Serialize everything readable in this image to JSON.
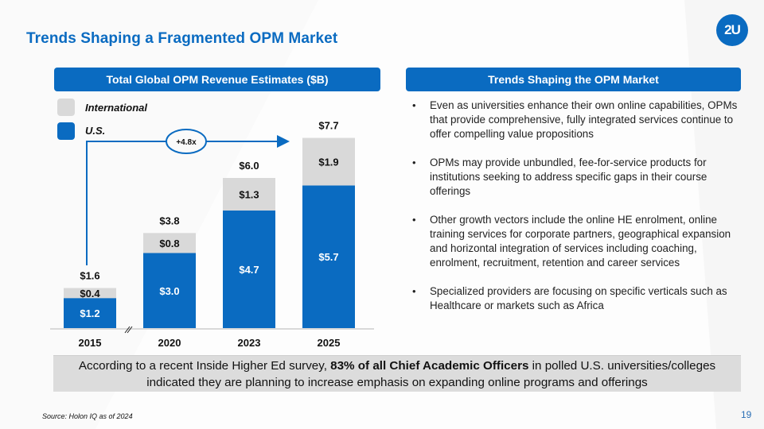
{
  "slide": {
    "title": "Trends Shaping a Fragmented OPM Market",
    "logo_text": "2U",
    "page_number": "19",
    "source": "Source: Holon IQ as of 2024"
  },
  "left_panel": {
    "header": "Total Global OPM Revenue Estimates ($B)"
  },
  "right_panel": {
    "header": "Trends Shaping the OPM Market",
    "bullets": [
      "Even as universities enhance their own online capabilities, OPMs that provide comprehensive, fully integrated services continue to offer compelling value propositions",
      "OPMs may provide unbundled, fee-for-service products for institutions seeking to address specific gaps in their course offerings",
      "Other growth vectors include the online HE enrolment, online training services for corporate partners, geographical expansion and horizontal integration of services including coaching, enrolment, recruitment, retention and career services",
      "Specialized providers are focusing on specific verticals such as Healthcare or markets such as Africa"
    ]
  },
  "callout": {
    "prefix": "According to a recent Inside Higher Ed survey, ",
    "bold": "83% of all Chief Academic Officers",
    "suffix": " in polled U.S. universities/colleges indicated they are planning to increase emphasis on expanding online programs and offerings"
  },
  "colors": {
    "brand_blue": "#0a6bc1",
    "international_gray": "#d9d9d9",
    "callout_gray": "#dcdcdc"
  },
  "chart_data": {
    "type": "bar",
    "stacked": true,
    "title": "Total Global OPM Revenue Estimates ($B)",
    "xlabel": "",
    "ylabel": "",
    "categories": [
      "2015",
      "2020",
      "2023",
      "2025"
    ],
    "series": [
      {
        "name": "U.S.",
        "color": "#0a6bc1",
        "values": [
          1.2,
          3.0,
          4.7,
          5.7
        ],
        "labels": [
          "$1.2",
          "$3.0",
          "$4.7",
          "$5.7"
        ]
      },
      {
        "name": "International",
        "color": "#d9d9d9",
        "values": [
          0.4,
          0.8,
          1.3,
          1.9
        ],
        "labels": [
          "$0.4",
          "$0.8",
          "$1.3",
          "$1.9"
        ]
      }
    ],
    "totals": [
      1.6,
      3.8,
      6.0,
      7.7
    ],
    "total_labels": [
      "$1.6",
      "$3.8",
      "$6.0",
      "$7.7"
    ],
    "legend": {
      "position": "top-left",
      "entries": [
        "International",
        "U.S."
      ]
    },
    "annotation": {
      "text": "+4.8x",
      "from": "2015",
      "to": "2025"
    },
    "axis_break_between": [
      "2015",
      "2020"
    ],
    "ylim": [
      0,
      7.7
    ],
    "grid": false
  }
}
